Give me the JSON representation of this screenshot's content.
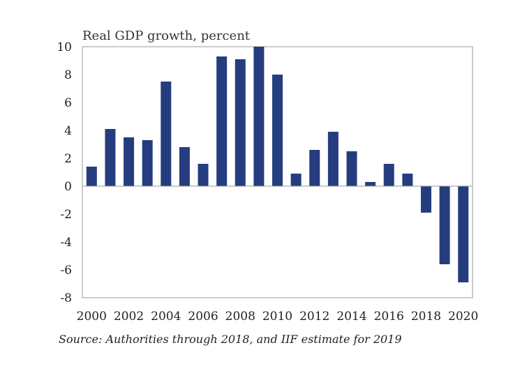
{
  "chart_data": {
    "type": "bar",
    "title": "Real GDP growth, percent",
    "source": "Source: Authorities through 2018, and IIF estimate for 2019",
    "xlabel": "",
    "ylabel": "",
    "ylim": [
      -8,
      10
    ],
    "y_ticks": [
      10,
      8,
      6,
      4,
      2,
      0,
      -2,
      -4,
      -6,
      -8
    ],
    "x_tick_labels": [
      "2000",
      "2002",
      "2004",
      "2006",
      "2008",
      "2010",
      "2012",
      "2014",
      "2016",
      "2018",
      "2020"
    ],
    "categories": [
      "2000",
      "2001",
      "2002",
      "2003",
      "2004",
      "2005",
      "2006",
      "2007",
      "2008",
      "2009",
      "2010",
      "2011",
      "2012",
      "2013",
      "2014",
      "2015",
      "2016",
      "2017",
      "2018",
      "2019",
      "2020"
    ],
    "values": [
      1.4,
      4.1,
      3.5,
      3.3,
      7.5,
      2.8,
      1.6,
      9.3,
      9.1,
      10.0,
      8.0,
      0.9,
      2.6,
      3.9,
      2.5,
      0.3,
      1.6,
      0.9,
      -1.9,
      -5.6,
      -6.9
    ],
    "bar_color": "#253d7e",
    "grid": false
  }
}
